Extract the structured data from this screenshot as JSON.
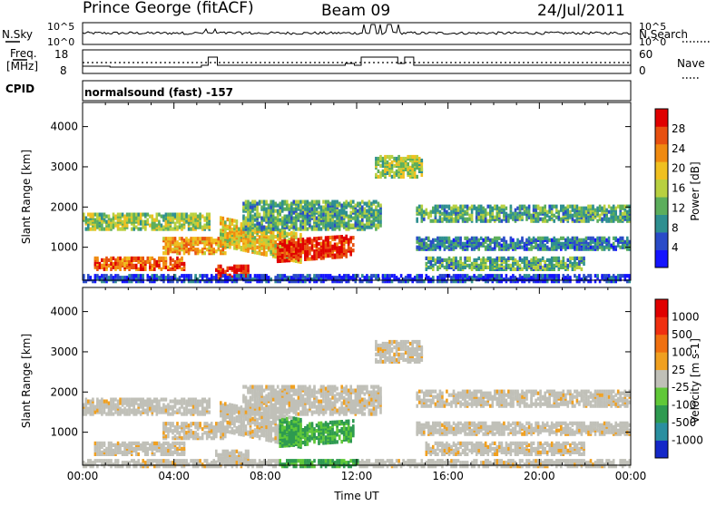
{
  "header": {
    "station": "Prince George (fitACF)",
    "beam": "Beam 09",
    "date": "24/Jul/2011"
  },
  "noise_panel": {
    "left_label": "N.Sky",
    "right_label": "N.Search",
    "left_ticks": [
      "10^5",
      "10^0"
    ],
    "right_ticks": [
      "10^5",
      "10^0"
    ]
  },
  "freq_panel": {
    "label_top": "Freq.",
    "label_unit": "[MHz]",
    "left_ticks": [
      "18",
      "8"
    ],
    "right_label": "Nave",
    "right_ticks": [
      "60",
      "0"
    ]
  },
  "cpid": {
    "label": "CPID",
    "text": "normalsound (fast) -157"
  },
  "chart_data": [
    {
      "type": "heatmap",
      "name": "power",
      "ylabel": "Slant Range [km]",
      "xlabel": "",
      "y_ticks": [
        "1000",
        "2000",
        "3000",
        "4000"
      ],
      "x_range_hours": [
        0,
        24
      ],
      "y_range_km": [
        180,
        4600
      ],
      "colorbar": {
        "label": "Power [dB]",
        "ticks": [
          "4",
          "8",
          "12",
          "16",
          "20",
          "24",
          "28"
        ],
        "colors": [
          "#1414ff",
          "#2a4bc8",
          "#2e8f90",
          "#5cae5c",
          "#b8d040",
          "#f0c020",
          "#f08a10",
          "#e85010",
          "#e00000"
        ]
      }
    },
    {
      "type": "heatmap",
      "name": "velocity",
      "ylabel": "Slant Range [km]",
      "xlabel": "Time UT",
      "y_ticks": [
        "1000",
        "2000",
        "3000",
        "4000"
      ],
      "x_ticks": [
        "00:00",
        "04:00",
        "08:00",
        "12:00",
        "16:00",
        "20:00",
        "00:00"
      ],
      "x_range_hours": [
        0,
        24
      ],
      "y_range_km": [
        180,
        4600
      ],
      "colorbar": {
        "label": "Velocity [m s-1]",
        "ticks": [
          "1000",
          "500",
          "100",
          "25",
          "-25",
          "-100",
          "-500",
          "-1000"
        ],
        "colors": [
          "#1428c8",
          "#2a8fa0",
          "#2e9a50",
          "#60c838",
          "#c0c0b8",
          "#f0a020",
          "#f07010",
          "#f03010",
          "#e00000"
        ]
      }
    }
  ]
}
